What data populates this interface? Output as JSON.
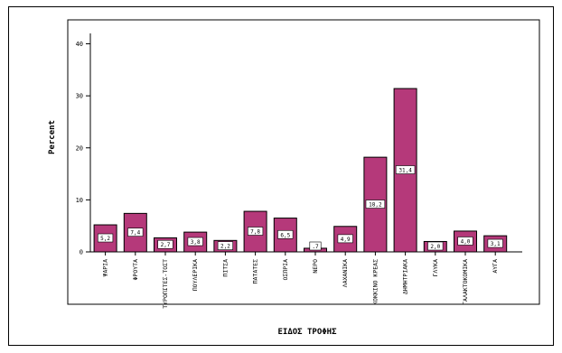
{
  "chart_data": {
    "type": "bar",
    "xlabel": "ΕΙΔΟΣ ΤΡΟΦΗΣ",
    "ylabel": "Percent",
    "ylim": [
      0,
      42
    ],
    "yticks": [
      0,
      10,
      20,
      30,
      40
    ],
    "bar_color": "#b5397a",
    "categories": [
      "ΨΑΡΙΑ",
      "ΦΡΟΥΤΑ",
      "ΤΥΡΟΠΙΤΕΣ-ΤΟΣΤ",
      "ΠΟΥΛΕΡΙΚΑ",
      "ΠΙΤΣΑ",
      "ΠΑΤΑΤΕΣ",
      "ΟΣΠΡΙΑ",
      "ΝΕΡΟ",
      "ΛΑΧΑΝΙΚΑ",
      "ΚΟΚΚΙΝΟ ΚΡΕΑΣ",
      "ΔΗΜΗΤΡΙΑΚΑ",
      "ΓΛΥΚΑ",
      "ΓΑΛΑΚΤΟΚΟΜΙΚΑ",
      "ΑΥΓΑ"
    ],
    "values": [
      5.2,
      7.4,
      2.7,
      3.8,
      2.2,
      7.8,
      6.5,
      0.7,
      4.9,
      18.2,
      31.4,
      2.0,
      4.0,
      3.1
    ],
    "data_labels": [
      "5,2",
      "7,4",
      "2,7",
      "3,8",
      "2,2",
      "7,8",
      "6,5",
      ".7",
      "4,9",
      "18,2",
      "31,4",
      "2,0",
      "4,0",
      "3,1"
    ]
  }
}
